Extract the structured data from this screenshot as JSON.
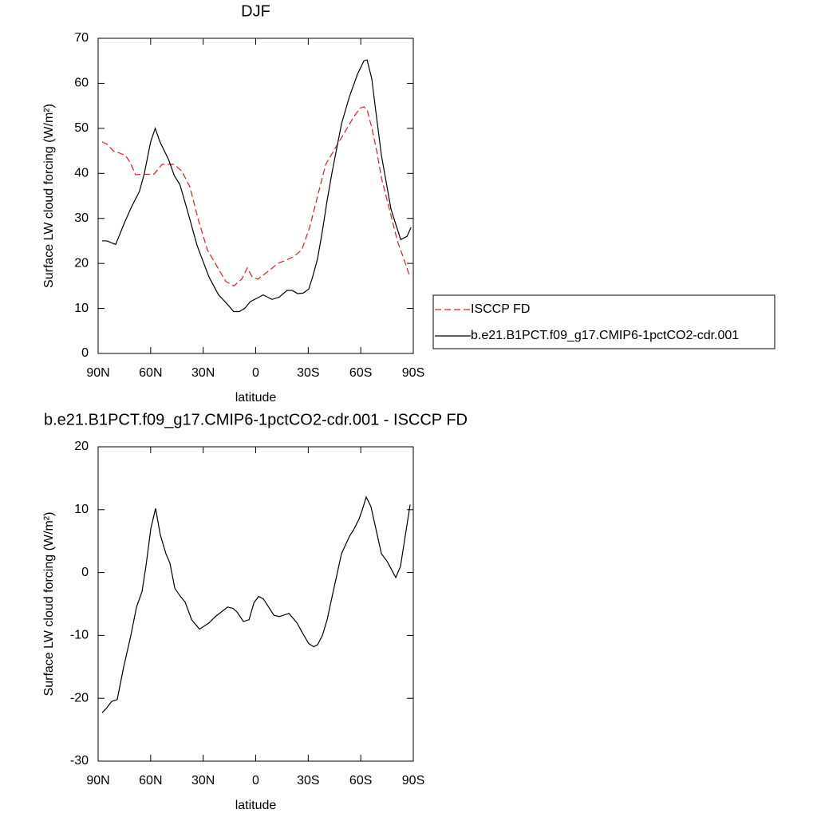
{
  "chart_data": [
    {
      "type": "line",
      "title": "DJF",
      "xlabel": "latitude",
      "ylabel": "Surface LW cloud forcing (W/m²)",
      "xlim": [
        90,
        -90
      ],
      "xticks": [
        {
          "value": 90,
          "label": "90N"
        },
        {
          "value": 60,
          "label": "60N"
        },
        {
          "value": 30,
          "label": "30N"
        },
        0,
        {
          "value": -30,
          "label": "30S"
        },
        {
          "value": -60,
          "label": "60S"
        },
        {
          "value": -90,
          "label": "90S"
        }
      ],
      "ylim": [
        0,
        70
      ],
      "yticks": [
        0,
        10,
        20,
        30,
        40,
        50,
        60,
        70
      ],
      "legend": "right",
      "series": [
        {
          "name": "ISCCP FD",
          "color": "#e41a1c",
          "dash": true,
          "x": [
            87.7,
            85,
            81.3,
            77.7,
            74.5,
            71.8,
            68.6,
            64.9,
            58.1,
            53.5,
            46.7,
            42.2,
            37.6,
            33,
            27.6,
            21.6,
            17.1,
            12.5,
            8,
            4.8,
            2,
            -1.2,
            -8,
            -12.6,
            -17.2,
            -21.7,
            -26.3,
            -30.8,
            -35.4,
            -40,
            -46.8,
            -51.4,
            -55.9,
            -59.6,
            -61.8,
            -63.7,
            -66.4,
            -69.1,
            -71.8,
            -76.4,
            -80.9,
            -84.6,
            -88.1
          ],
          "values": [
            47,
            46.5,
            45,
            44.5,
            44,
            42.5,
            39.7,
            39.8,
            39.8,
            42,
            42,
            40.5,
            37,
            30,
            23,
            19,
            16,
            15,
            16.5,
            19,
            17,
            16.5,
            18.5,
            20,
            20.7,
            21.5,
            23,
            28,
            35,
            42,
            46.5,
            49.5,
            52.5,
            54.5,
            54.8,
            54,
            50,
            45,
            39,
            32,
            25,
            21,
            17
          ]
        },
        {
          "name": "b.e21.B1PCT.f09_g17.CMIP6-1pctCO2-cdr.001",
          "color": "#000000",
          "dash": false,
          "x": [
            87.7,
            85,
            80,
            75,
            71,
            66.4,
            63.6,
            60,
            57.4,
            54.7,
            49.7,
            46.5,
            43.3,
            39.2,
            33.5,
            26.7,
            21.2,
            16.3,
            12.6,
            9.4,
            6.3,
            3.1,
            -4.3,
            -9.3,
            -13.4,
            -17.9,
            -20.8,
            -23.9,
            -27.1,
            -30.3,
            -32.5,
            -35.3,
            -38,
            -40.8,
            -43.5,
            -49,
            -53.5,
            -58.1,
            -61.8,
            -63.6,
            -66.3,
            -68.2,
            -71.8,
            -77.3,
            -82.8,
            -86.4,
            -88.7
          ],
          "values": [
            25,
            25,
            24.2,
            29,
            32.5,
            36,
            40,
            47,
            50,
            47,
            43,
            39.5,
            37.5,
            32,
            24,
            17,
            13,
            11,
            9.3,
            9.3,
            10,
            11.5,
            13,
            12,
            12.5,
            14,
            14,
            13.3,
            13.4,
            14.3,
            17,
            21,
            27,
            34,
            40,
            51,
            57,
            62,
            65,
            65.2,
            61,
            55,
            44,
            32,
            25.3,
            26,
            28
          ]
        }
      ]
    },
    {
      "type": "line",
      "title": "b.e21.B1PCT.f09_g17.CMIP6-1pctCO2-cdr.001 - ISCCP FD",
      "xlabel": "latitude",
      "ylabel": "Surface LW cloud forcing (W/m²)",
      "xlim": [
        90,
        -90
      ],
      "xticks": [
        {
          "value": 90,
          "label": "90N"
        },
        {
          "value": 60,
          "label": "60N"
        },
        {
          "value": 30,
          "label": "30N"
        },
        0,
        {
          "value": -30,
          "label": "30S"
        },
        {
          "value": -60,
          "label": "60S"
        },
        {
          "value": -90,
          "label": "90S"
        }
      ],
      "ylim": [
        -30,
        20
      ],
      "yticks": [
        -30,
        -20,
        -10,
        0,
        10,
        20
      ],
      "series": [
        {
          "color": "#000000",
          "dash": false,
          "x": [
            87.7,
            85,
            82.3,
            79.1,
            75.4,
            71.3,
            68.1,
            64.9,
            62.7,
            59.9,
            57.2,
            54.5,
            51.3,
            49,
            46.2,
            43,
            40.3,
            36.6,
            32.1,
            26.6,
            23,
            16.1,
            12.9,
            10.6,
            7,
            3.8,
            1,
            -1.7,
            -4.4,
            -10.4,
            -13.5,
            -19,
            -23.5,
            -27.1,
            -30.3,
            -33.1,
            -35.3,
            -38.1,
            -40.8,
            -43.5,
            -49,
            -53.6,
            -55.9,
            -59,
            -60.9,
            -63.1,
            -65.8,
            -68.6,
            -71.8,
            -75,
            -80,
            -82.7,
            -85.5,
            -88.2
          ],
          "values": [
            -22.3,
            -21.5,
            -20.5,
            -20.2,
            -15,
            -10,
            -5.5,
            -3,
            1,
            7,
            10.2,
            6,
            3,
            1.5,
            -2.5,
            -3.8,
            -4.7,
            -7.5,
            -9,
            -8,
            -7,
            -5.5,
            -5.7,
            -6.3,
            -7.8,
            -7.5,
            -4.8,
            -3.8,
            -4.2,
            -6.8,
            -7,
            -6.5,
            -8,
            -9.8,
            -11.3,
            -11.8,
            -11.5,
            -10,
            -7.5,
            -4,
            3,
            5.8,
            6.8,
            8.5,
            10,
            12,
            10.5,
            7,
            3,
            1.8,
            -0.8,
            1,
            6,
            10.8
          ]
        }
      ]
    }
  ]
}
